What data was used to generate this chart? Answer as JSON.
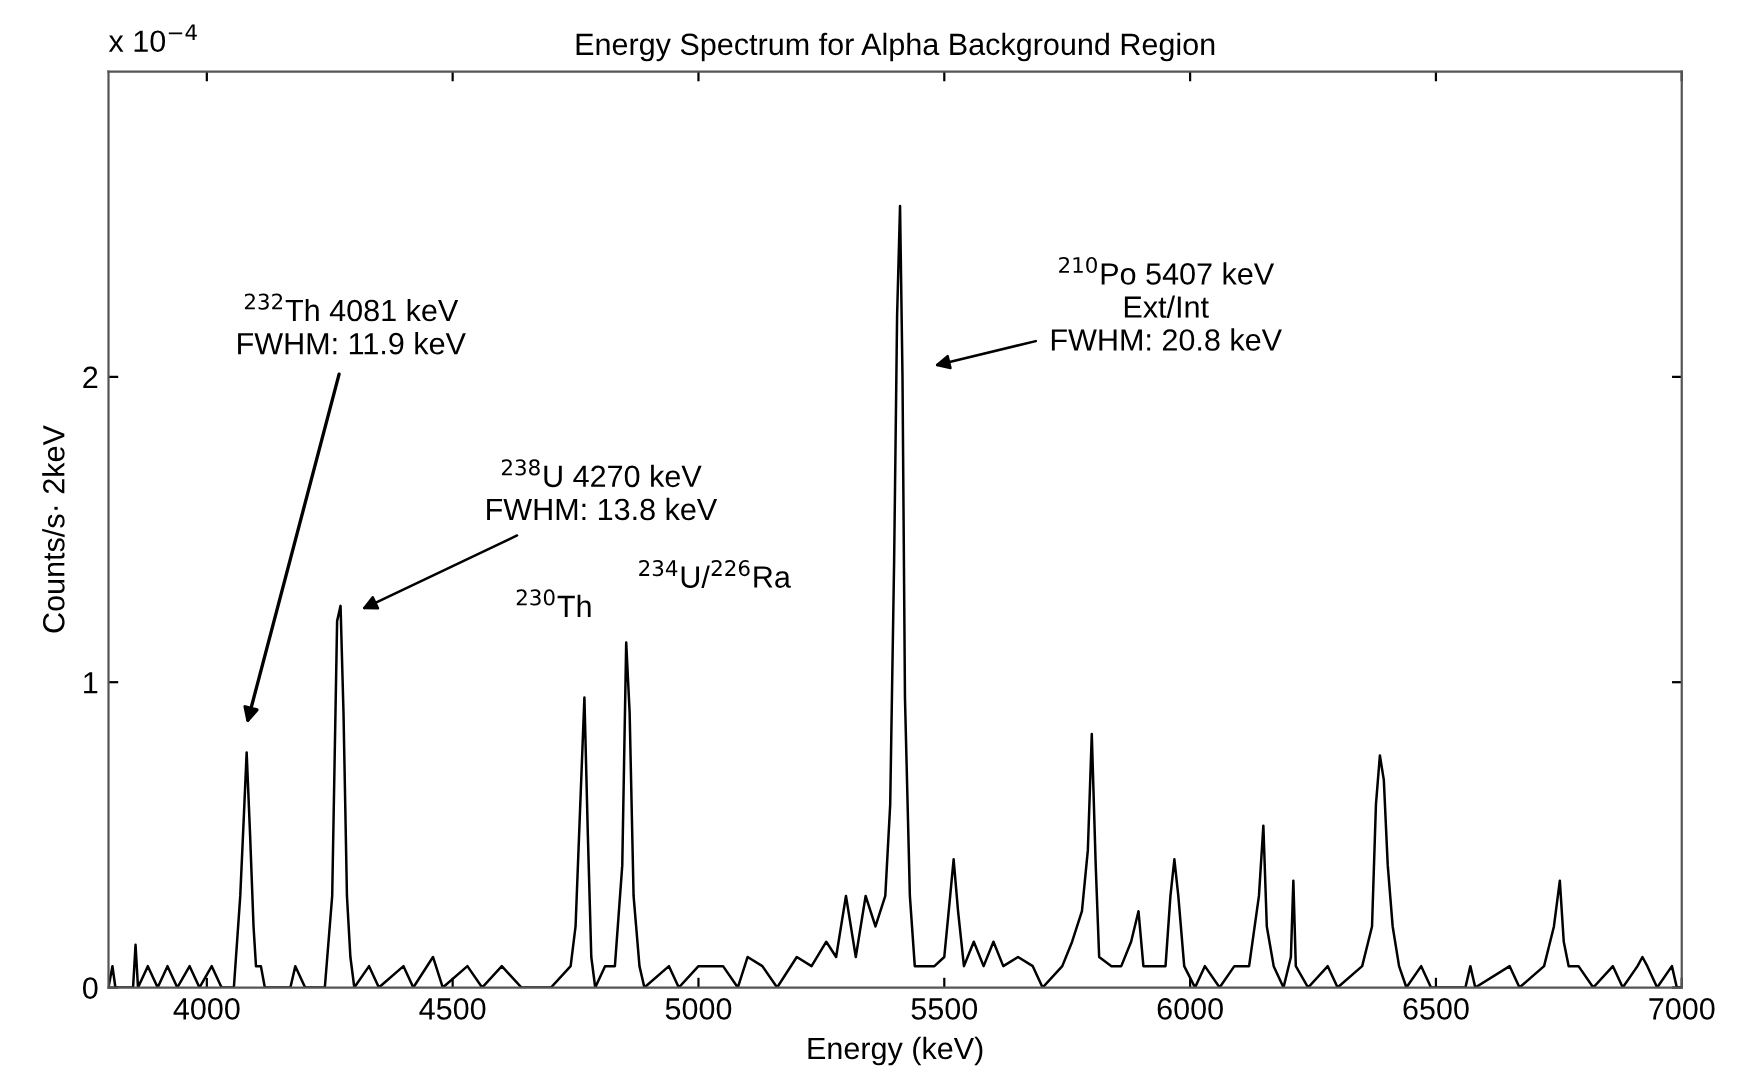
{
  "chart_data": {
    "type": "line",
    "title": "Energy Spectrum for Alpha Background Region",
    "xlabel": "Energy (keV)",
    "ylabel": "Counts/s· 2keV",
    "xlim": [
      3800,
      7000
    ],
    "xticks": [
      4000,
      4500,
      5000,
      5500,
      6000,
      6500,
      7000
    ],
    "ylim": [
      0,
      3
    ],
    "yticks": [
      0,
      1,
      2
    ],
    "grid": false,
    "legend": false,
    "marker": "none",
    "line_style": "solid",
    "series": [
      {
        "color": "#000000",
        "x": [
          3800,
          3808,
          3814,
          3850,
          3855,
          3860,
          3880,
          3900,
          3920,
          3940,
          3965,
          3985,
          4010,
          4030,
          4055,
          4068,
          4075,
          4081,
          4088,
          4095,
          4100,
          4110,
          4118,
          4170,
          4180,
          4200,
          4240,
          4255,
          4265,
          4272,
          4278,
          4285,
          4292,
          4300,
          4330,
          4350,
          4400,
          4420,
          4460,
          4480,
          4530,
          4560,
          4600,
          4640,
          4700,
          4740,
          4750,
          4762,
          4768,
          4775,
          4782,
          4790,
          4810,
          4830,
          4845,
          4853,
          4860,
          4868,
          4880,
          4890,
          4940,
          4960,
          5000,
          5050,
          5080,
          5100,
          5130,
          5160,
          5200,
          5230,
          5260,
          5280,
          5300,
          5320,
          5340,
          5360,
          5380,
          5390,
          5398,
          5404,
          5410,
          5415,
          5420,
          5430,
          5440,
          5460,
          5480,
          5500,
          5512,
          5519,
          5528,
          5540,
          5560,
          5580,
          5600,
          5620,
          5650,
          5680,
          5700,
          5740,
          5760,
          5780,
          5792,
          5800,
          5808,
          5815,
          5840,
          5860,
          5880,
          5895,
          5905,
          5930,
          5950,
          5960,
          5968,
          5976,
          5988,
          6010,
          6030,
          6060,
          6090,
          6120,
          6140,
          6149,
          6156,
          6170,
          6190,
          6205,
          6210,
          6215,
          6240,
          6280,
          6300,
          6350,
          6370,
          6378,
          6386,
          6394,
          6402,
          6412,
          6425,
          6440,
          6470,
          6490,
          6560,
          6570,
          6580,
          6650,
          6670,
          6720,
          6740,
          6752,
          6760,
          6770,
          6790,
          6820,
          6860,
          6880,
          6910,
          6920,
          6930,
          6950,
          6980,
          6990,
          7000
        ],
        "values": [
          0,
          0.07,
          0,
          0,
          0.14,
          0,
          0.07,
          0,
          0.07,
          0,
          0.07,
          0,
          0.07,
          0,
          0,
          0.3,
          0.55,
          0.77,
          0.5,
          0.2,
          0.07,
          0.07,
          0,
          0,
          0.07,
          0,
          0,
          0.3,
          1.2,
          1.25,
          0.9,
          0.3,
          0.1,
          0,
          0.07,
          0,
          0.07,
          0,
          0.1,
          0,
          0.07,
          0,
          0.07,
          0,
          0,
          0.07,
          0.2,
          0.7,
          0.95,
          0.5,
          0.1,
          0,
          0.07,
          0.07,
          0.4,
          1.13,
          0.9,
          0.3,
          0.07,
          0,
          0.07,
          0,
          0.07,
          0.07,
          0,
          0.1,
          0.07,
          0,
          0.1,
          0.07,
          0.15,
          0.1,
          0.3,
          0.1,
          0.3,
          0.2,
          0.3,
          0.6,
          1.4,
          2.2,
          2.56,
          2.0,
          0.95,
          0.3,
          0.07,
          0.07,
          0.07,
          0.1,
          0.3,
          0.42,
          0.25,
          0.07,
          0.15,
          0.07,
          0.15,
          0.07,
          0.1,
          0.07,
          0,
          0.07,
          0.15,
          0.25,
          0.45,
          0.83,
          0.4,
          0.1,
          0.07,
          0.07,
          0.15,
          0.25,
          0.07,
          0.07,
          0.07,
          0.3,
          0.42,
          0.3,
          0.07,
          0,
          0.07,
          0,
          0.07,
          0.07,
          0.3,
          0.53,
          0.2,
          0.07,
          0,
          0.1,
          0.35,
          0.07,
          0,
          0.07,
          0,
          0.07,
          0.2,
          0.6,
          0.76,
          0.68,
          0.4,
          0.2,
          0.07,
          0,
          0.07,
          0,
          0,
          0.07,
          0,
          0.07,
          0,
          0.07,
          0.2,
          0.35,
          0.15,
          0.07,
          0.07,
          0,
          0.07,
          0,
          0.07,
          0.1,
          0.07,
          0,
          0.07,
          0,
          0
        ]
      }
    ],
    "annotations": [
      "$^{232}$Th 4081 keV\nFWHM: 11.9 keV",
      "$^{238}$U 4270 keV\nFWHM: 13.8 keV",
      "$^{230}$Th",
      "$^{234}$U/$^{226}$Ra",
      "$^{210}$Po 5407 keV\nExt/Int\nFWHM: 20.8 keV",
      "x 10$^{−4}$"
    ]
  }
}
